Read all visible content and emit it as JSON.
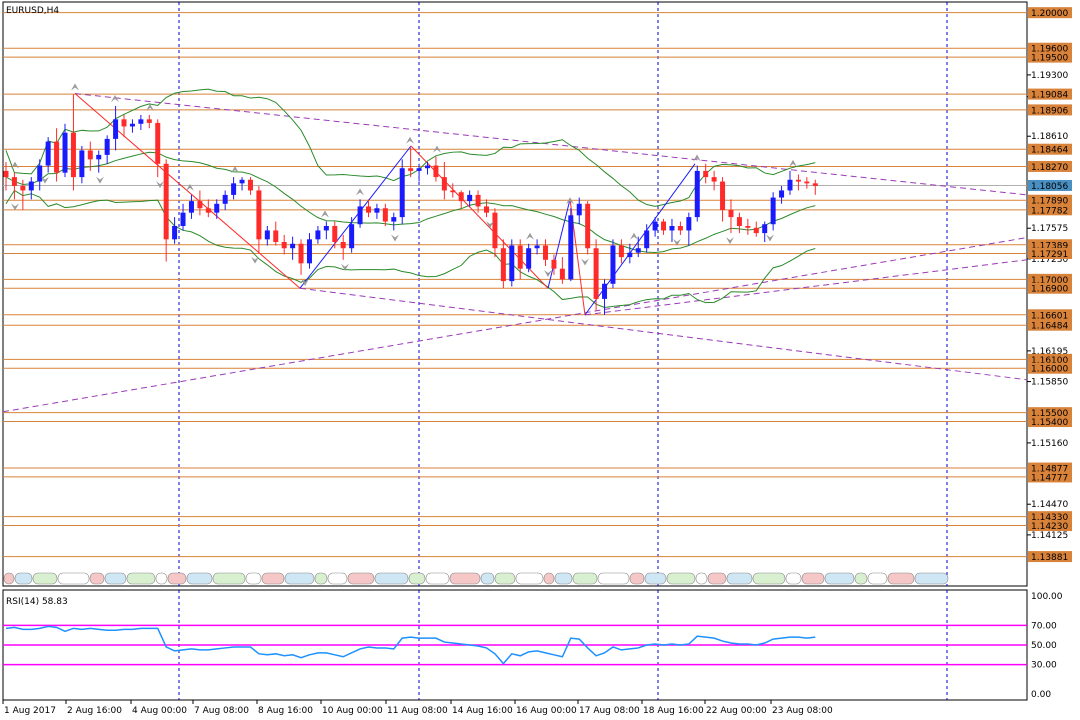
{
  "main_panel": {
    "title": "EURUSD,H4"
  },
  "rsi_panel": {
    "title": "RSI(14) 58.83",
    "value": 58.83,
    "levels": [
      70,
      50,
      30
    ],
    "y_ticks": [
      "100.00",
      "70.00",
      "50.00",
      "30.00",
      "0.00"
    ]
  },
  "colors": {
    "bull": "#1a1aff",
    "bear": "#ff2a2a",
    "sr_line": "#d9823a",
    "tag_fill": "#d9823a",
    "current_tag": "#4a8fc2",
    "trend": "#9a3ab8",
    "bands": "#2a8a2a",
    "rsi": "#1e90ff",
    "rsi_level": "#ff00ff",
    "grid": "#0000cc"
  },
  "chart_data": {
    "type": "candlestick",
    "symbol": "EURUSD",
    "timeframe": "H4",
    "ylim": [
      1.1355,
      1.2012
    ],
    "price_ticks": [
      "1.19300",
      "1.19055",
      "1.18610",
      "1.17575",
      "1.17230",
      "1.16195",
      "1.15850",
      "1.15160",
      "1.14470",
      "1.14125"
    ],
    "level_tags": [
      "1.20000",
      "1.19600",
      "1.19500",
      "1.19084",
      "1.18906",
      "1.18464",
      "1.18270",
      "1.17890",
      "1.17782",
      "1.17389",
      "1.17291",
      "1.17000",
      "1.16900",
      "1.16601",
      "1.16484",
      "1.16100",
      "1.16000",
      "1.15500",
      "1.15400",
      "1.14877",
      "1.14777",
      "1.14330",
      "1.14230",
      "1.13881"
    ],
    "current_price": "1.18056",
    "x_labels": [
      "1 Aug 2017",
      "2 Aug 16:00",
      "4 Aug 00:00",
      "7 Aug 08:00",
      "8 Aug 16:00",
      "10 Aug 00:00",
      "11 Aug 08:00",
      "14 Aug 16:00",
      "16 Aug 00:00",
      "17 Aug 08:00",
      "18 Aug 16:00",
      "22 Aug 00:00",
      "23 Aug 08:00"
    ],
    "candles": [
      [
        1.1822,
        1.1832,
        1.18,
        1.1815
      ],
      [
        1.1815,
        1.182,
        1.179,
        1.1805
      ],
      [
        1.1805,
        1.1812,
        1.1778,
        1.18
      ],
      [
        1.18,
        1.1815,
        1.179,
        1.181
      ],
      [
        1.181,
        1.1835,
        1.18,
        1.1828
      ],
      [
        1.1828,
        1.186,
        1.182,
        1.1855
      ],
      [
        1.1855,
        1.187,
        1.181,
        1.182
      ],
      [
        1.182,
        1.1875,
        1.1815,
        1.1865
      ],
      [
        1.1865,
        1.1908,
        1.18,
        1.1815
      ],
      [
        1.1815,
        1.185,
        1.1808,
        1.1845
      ],
      [
        1.1845,
        1.1855,
        1.1822,
        1.1835
      ],
      [
        1.1835,
        1.1845,
        1.182,
        1.184
      ],
      [
        1.184,
        1.1862,
        1.183,
        1.1858
      ],
      [
        1.1858,
        1.1895,
        1.1845,
        1.188
      ],
      [
        1.188,
        1.1885,
        1.186,
        1.1872
      ],
      [
        1.1872,
        1.188,
        1.1865,
        1.1875
      ],
      [
        1.1875,
        1.1885,
        1.1868,
        1.188
      ],
      [
        1.188,
        1.1885,
        1.187,
        1.1876
      ],
      [
        1.1876,
        1.188,
        1.1815,
        1.183
      ],
      [
        1.183,
        1.1835,
        1.172,
        1.1745
      ],
      [
        1.1745,
        1.177,
        1.174,
        1.176
      ],
      [
        1.176,
        1.1785,
        1.1755,
        1.1775
      ],
      [
        1.1775,
        1.1795,
        1.1768,
        1.1788
      ],
      [
        1.1788,
        1.18,
        1.1772,
        1.178
      ],
      [
        1.178,
        1.179,
        1.177,
        1.1775
      ],
      [
        1.1775,
        1.179,
        1.1768,
        1.1785
      ],
      [
        1.1785,
        1.18,
        1.1778,
        1.1795
      ],
      [
        1.1795,
        1.1815,
        1.179,
        1.1808
      ],
      [
        1.1808,
        1.1815,
        1.18,
        1.1812
      ],
      [
        1.1812,
        1.1815,
        1.1795,
        1.18
      ],
      [
        1.18,
        1.1805,
        1.173,
        1.1745
      ],
      [
        1.1745,
        1.176,
        1.1738,
        1.1755
      ],
      [
        1.1755,
        1.1765,
        1.1738,
        1.1742
      ],
      [
        1.1742,
        1.175,
        1.1728,
        1.1735
      ],
      [
        1.1735,
        1.1748,
        1.1722,
        1.174
      ],
      [
        1.174,
        1.1745,
        1.1705,
        1.1718
      ],
      [
        1.1718,
        1.1752,
        1.1712,
        1.1745
      ],
      [
        1.1745,
        1.176,
        1.174,
        1.1755
      ],
      [
        1.1755,
        1.1765,
        1.1745,
        1.176
      ],
      [
        1.176,
        1.1765,
        1.1735,
        1.1742
      ],
      [
        1.1742,
        1.175,
        1.1722,
        1.1735
      ],
      [
        1.1735,
        1.177,
        1.173,
        1.1762
      ],
      [
        1.1762,
        1.179,
        1.1758,
        1.1782
      ],
      [
        1.1782,
        1.179,
        1.177,
        1.1775
      ],
      [
        1.1775,
        1.1785,
        1.1768,
        1.178
      ],
      [
        1.178,
        1.1785,
        1.176,
        1.1765
      ],
      [
        1.1765,
        1.1775,
        1.1755,
        1.177
      ],
      [
        1.177,
        1.1835,
        1.1762,
        1.1825
      ],
      [
        1.1825,
        1.1848,
        1.1815,
        1.1822
      ],
      [
        1.1822,
        1.183,
        1.181,
        1.1825
      ],
      [
        1.1825,
        1.1832,
        1.1818,
        1.1828
      ],
      [
        1.1828,
        1.1838,
        1.181,
        1.1815
      ],
      [
        1.1815,
        1.1832,
        1.179,
        1.18
      ],
      [
        1.18,
        1.1808,
        1.1792,
        1.1798
      ],
      [
        1.1798,
        1.18,
        1.178,
        1.1788
      ],
      [
        1.1788,
        1.18,
        1.1782,
        1.1795
      ],
      [
        1.1795,
        1.18,
        1.1775,
        1.1782
      ],
      [
        1.1782,
        1.179,
        1.177,
        1.1775
      ],
      [
        1.1775,
        1.178,
        1.1725,
        1.1735
      ],
      [
        1.1735,
        1.1745,
        1.169,
        1.1698
      ],
      [
        1.1698,
        1.1745,
        1.1692,
        1.1738
      ],
      [
        1.1738,
        1.1745,
        1.17,
        1.1712
      ],
      [
        1.1712,
        1.174,
        1.1708,
        1.1735
      ],
      [
        1.1735,
        1.1745,
        1.1728,
        1.1738
      ],
      [
        1.1738,
        1.1745,
        1.1715,
        1.1722
      ],
      [
        1.1722,
        1.1728,
        1.1705,
        1.1712
      ],
      [
        1.1712,
        1.1725,
        1.1695,
        1.17
      ],
      [
        1.17,
        1.178,
        1.1698,
        1.1772
      ],
      [
        1.1772,
        1.1792,
        1.1762,
        1.1785
      ],
      [
        1.1785,
        1.1788,
        1.1728,
        1.1735
      ],
      [
        1.1735,
        1.1745,
        1.1665,
        1.1678
      ],
      [
        1.1678,
        1.17,
        1.166,
        1.1695
      ],
      [
        1.1695,
        1.1745,
        1.169,
        1.1738
      ],
      [
        1.1738,
        1.1745,
        1.1718,
        1.1725
      ],
      [
        1.1725,
        1.174,
        1.1718,
        1.173
      ],
      [
        1.173,
        1.1748,
        1.1725,
        1.1735
      ],
      [
        1.1735,
        1.1762,
        1.173,
        1.1755
      ],
      [
        1.1755,
        1.177,
        1.1748,
        1.1765
      ],
      [
        1.1765,
        1.1768,
        1.175,
        1.1755
      ],
      [
        1.1755,
        1.1768,
        1.1742,
        1.176
      ],
      [
        1.176,
        1.1765,
        1.175,
        1.1755
      ],
      [
        1.1755,
        1.1775,
        1.1738,
        1.177
      ],
      [
        1.177,
        1.1828,
        1.1765,
        1.1822
      ],
      [
        1.1822,
        1.183,
        1.1808,
        1.1815
      ],
      [
        1.1815,
        1.1822,
        1.18,
        1.181
      ],
      [
        1.181,
        1.1815,
        1.1765,
        1.1778
      ],
      [
        1.1778,
        1.179,
        1.1752,
        1.177
      ],
      [
        1.177,
        1.1775,
        1.1752,
        1.176
      ],
      [
        1.176,
        1.1768,
        1.175,
        1.1758
      ],
      [
        1.1758,
        1.1765,
        1.1748,
        1.1752
      ],
      [
        1.1752,
        1.1765,
        1.1742,
        1.1762
      ],
      [
        1.1762,
        1.1798,
        1.1755,
        1.1792
      ],
      [
        1.1792,
        1.1805,
        1.1785,
        1.18
      ],
      [
        1.18,
        1.1822,
        1.1795,
        1.1812
      ],
      [
        1.1812,
        1.1818,
        1.18,
        1.181
      ],
      [
        1.181,
        1.1815,
        1.1802,
        1.1808
      ],
      [
        1.1808,
        1.1812,
        1.1795,
        1.1805
      ]
    ],
    "rsi_values": [
      67,
      68,
      66,
      66,
      67,
      69,
      68,
      64,
      67,
      66,
      67,
      66,
      65,
      65,
      66,
      66,
      67,
      67,
      67,
      48,
      44,
      45,
      46,
      45,
      45,
      46,
      47,
      48,
      48,
      48,
      41,
      40,
      41,
      39,
      40,
      37,
      40,
      42,
      42,
      40,
      38,
      42,
      46,
      48,
      47,
      47,
      46,
      57,
      58,
      57,
      57,
      57,
      53,
      52,
      51,
      50,
      49,
      47,
      41,
      31,
      41,
      39,
      43,
      44,
      42,
      40,
      38,
      57,
      56,
      47,
      39,
      42,
      48,
      45,
      46,
      47,
      50,
      51,
      50,
      51,
      50,
      51,
      59,
      58,
      57,
      54,
      52,
      51,
      51,
      50,
      52,
      56,
      57,
      58,
      58,
      57,
      58
    ]
  }
}
